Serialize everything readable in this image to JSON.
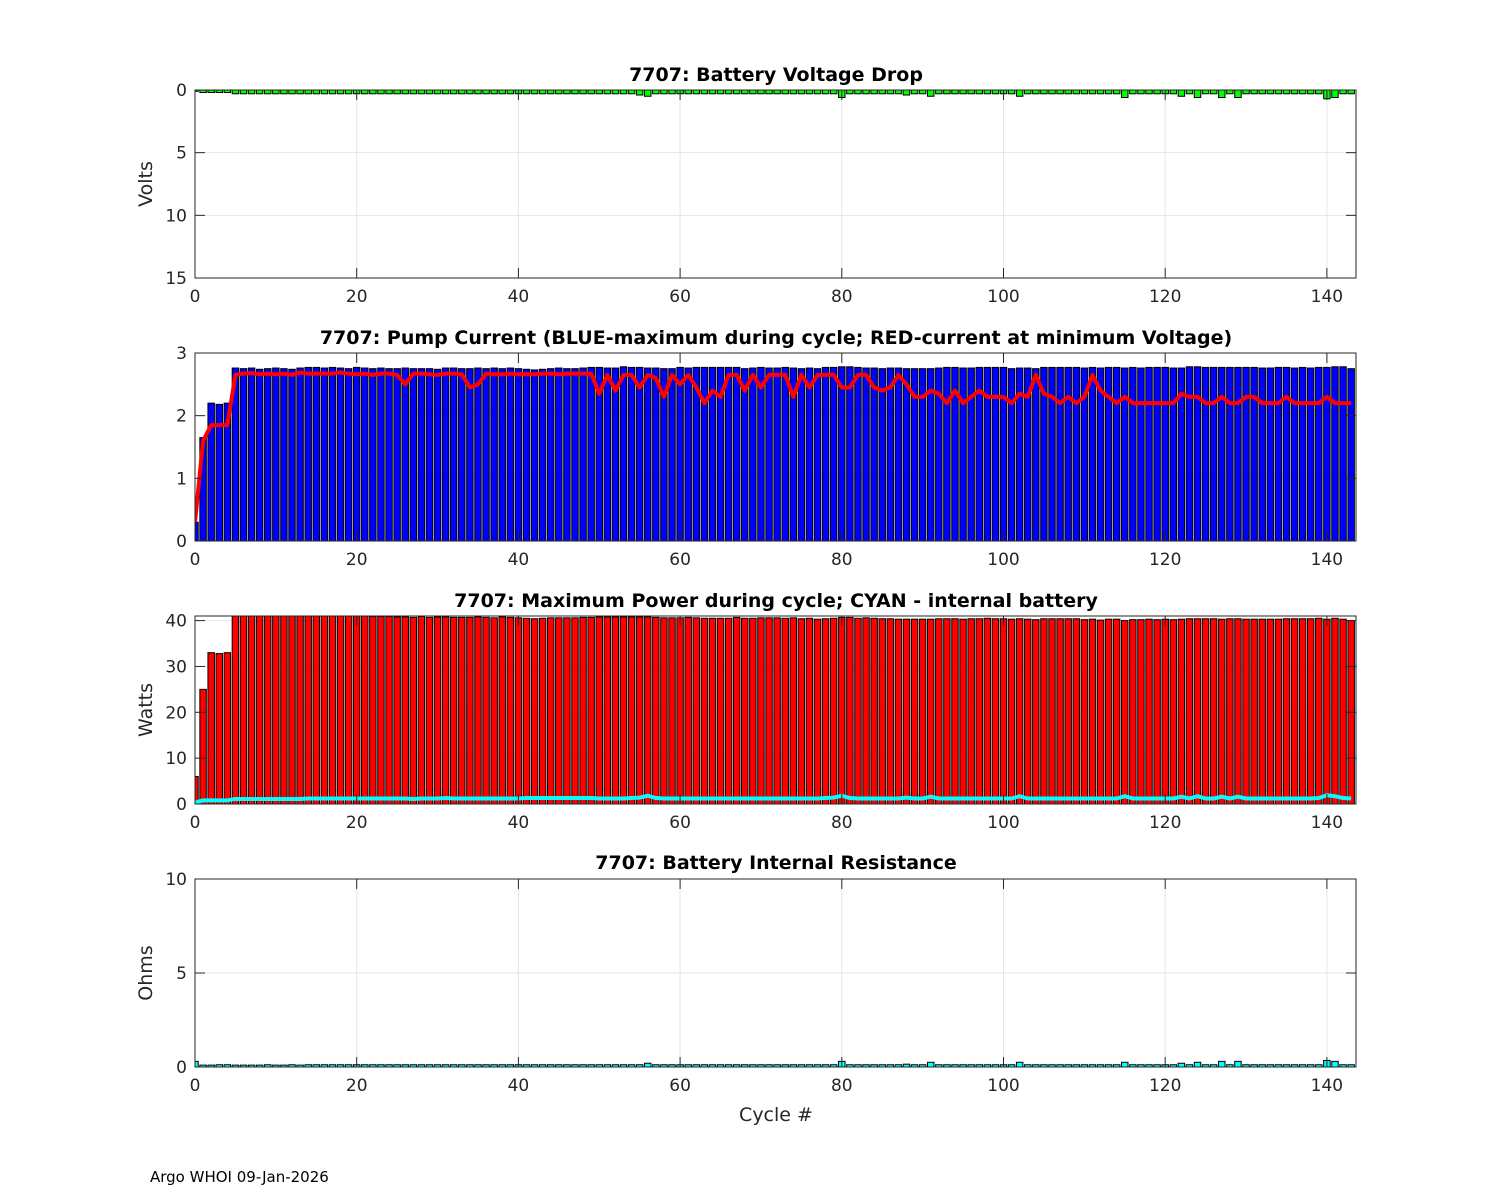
{
  "footer": "Argo WHOI 09-Jan-2026",
  "chart_data": [
    {
      "type": "bar",
      "title": "7707: Battery Voltage Drop",
      "ylabel": "Volts",
      "xlabel": "",
      "xlim": [
        0,
        143.6
      ],
      "ylim": [
        0,
        15
      ],
      "y_reversed": true,
      "xticks": [
        0,
        20,
        40,
        60,
        80,
        100,
        120,
        140
      ],
      "yticks": [
        0,
        5,
        10,
        15
      ],
      "grid": true,
      "bar_color": "#00ff00",
      "x_start": 0,
      "values": [
        0.1,
        0.2,
        0.2,
        0.2,
        0.2,
        0.3,
        0.3,
        0.3,
        0.3,
        0.3,
        0.3,
        0.3,
        0.3,
        0.3,
        0.3,
        0.3,
        0.3,
        0.3,
        0.3,
        0.3,
        0.3,
        0.3,
        0.3,
        0.3,
        0.3,
        0.3,
        0.3,
        0.3,
        0.3,
        0.3,
        0.3,
        0.3,
        0.3,
        0.3,
        0.3,
        0.3,
        0.3,
        0.3,
        0.3,
        0.3,
        0.3,
        0.3,
        0.3,
        0.3,
        0.3,
        0.3,
        0.3,
        0.3,
        0.3,
        0.3,
        0.3,
        0.3,
        0.3,
        0.3,
        0.3,
        0.4,
        0.5,
        0.3,
        0.3,
        0.3,
        0.3,
        0.3,
        0.3,
        0.3,
        0.3,
        0.3,
        0.3,
        0.3,
        0.3,
        0.3,
        0.3,
        0.3,
        0.3,
        0.3,
        0.3,
        0.3,
        0.3,
        0.3,
        0.3,
        0.3,
        0.6,
        0.3,
        0.3,
        0.3,
        0.3,
        0.3,
        0.3,
        0.3,
        0.4,
        0.3,
        0.3,
        0.5,
        0.3,
        0.3,
        0.3,
        0.3,
        0.3,
        0.3,
        0.3,
        0.3,
        0.3,
        0.3,
        0.5,
        0.3,
        0.3,
        0.3,
        0.3,
        0.3,
        0.3,
        0.3,
        0.3,
        0.3,
        0.3,
        0.3,
        0.3,
        0.6,
        0.3,
        0.3,
        0.3,
        0.3,
        0.3,
        0.3,
        0.5,
        0.3,
        0.6,
        0.3,
        0.3,
        0.6,
        0.3,
        0.6,
        0.3,
        0.3,
        0.3,
        0.3,
        0.3,
        0.3,
        0.3,
        0.3,
        0.3,
        0.3,
        0.7,
        0.6,
        0.3,
        0.3
      ]
    },
    {
      "type": "bar",
      "title": "7707: Pump Current (BLUE-maximum during cycle; RED-current at minimum Voltage)",
      "ylabel": "",
      "xlabel": "",
      "xlim": [
        0,
        143.6
      ],
      "ylim": [
        0,
        3
      ],
      "xticks": [
        0,
        20,
        40,
        60,
        80,
        100,
        120,
        140
      ],
      "yticks": [
        0,
        1,
        2,
        3
      ],
      "grid": true,
      "bar_color": "#0000ff",
      "line_color": "#ff0000",
      "x_start": 0,
      "series": [
        {
          "name": "maximum during cycle",
          "kind": "bar",
          "values": [
            0.3,
            1.65,
            2.2,
            2.18,
            2.2,
            2.76,
            2.75,
            2.76,
            2.74,
            2.75,
            2.76,
            2.75,
            2.74,
            2.76,
            2.77,
            2.77,
            2.76,
            2.77,
            2.76,
            2.75,
            2.77,
            2.76,
            2.75,
            2.76,
            2.75,
            2.75,
            2.76,
            2.75,
            2.75,
            2.75,
            2.74,
            2.76,
            2.76,
            2.75,
            2.75,
            2.76,
            2.75,
            2.76,
            2.75,
            2.76,
            2.75,
            2.74,
            2.73,
            2.74,
            2.75,
            2.76,
            2.75,
            2.75,
            2.76,
            2.77,
            2.77,
            2.76,
            2.76,
            2.78,
            2.77,
            2.77,
            2.76,
            2.76,
            2.75,
            2.75,
            2.77,
            2.76,
            2.77,
            2.77,
            2.77,
            2.77,
            2.77,
            2.77,
            2.75,
            2.76,
            2.77,
            2.76,
            2.76,
            2.77,
            2.76,
            2.75,
            2.76,
            2.75,
            2.77,
            2.77,
            2.78,
            2.78,
            2.77,
            2.76,
            2.76,
            2.75,
            2.76,
            2.76,
            2.75,
            2.75,
            2.75,
            2.75,
            2.76,
            2.77,
            2.77,
            2.76,
            2.76,
            2.77,
            2.77,
            2.77,
            2.77,
            2.75,
            2.76,
            2.76,
            2.75,
            2.77,
            2.77,
            2.77,
            2.77,
            2.77,
            2.76,
            2.77,
            2.76,
            2.77,
            2.77,
            2.76,
            2.77,
            2.76,
            2.77,
            2.77,
            2.77,
            2.76,
            2.76,
            2.78,
            2.78,
            2.77,
            2.77,
            2.77,
            2.77,
            2.77,
            2.77,
            2.77,
            2.76,
            2.76,
            2.77,
            2.77,
            2.76,
            2.77,
            2.76,
            2.77,
            2.77,
            2.78,
            2.78,
            2.75
          ]
        },
        {
          "name": "current at minimum Voltage",
          "kind": "line",
          "values": [
            0.3,
            1.6,
            1.85,
            1.85,
            1.85,
            2.65,
            2.67,
            2.68,
            2.66,
            2.67,
            2.66,
            2.67,
            2.65,
            2.69,
            2.67,
            2.67,
            2.67,
            2.67,
            2.69,
            2.67,
            2.66,
            2.67,
            2.65,
            2.67,
            2.67,
            2.65,
            2.5,
            2.67,
            2.67,
            2.66,
            2.65,
            2.67,
            2.67,
            2.66,
            2.45,
            2.5,
            2.67,
            2.66,
            2.66,
            2.67,
            2.66,
            2.66,
            2.66,
            2.67,
            2.67,
            2.66,
            2.67,
            2.67,
            2.67,
            2.67,
            2.35,
            2.65,
            2.4,
            2.65,
            2.65,
            2.45,
            2.65,
            2.6,
            2.3,
            2.65,
            2.5,
            2.65,
            2.45,
            2.2,
            2.4,
            2.3,
            2.65,
            2.65,
            2.4,
            2.65,
            2.45,
            2.65,
            2.65,
            2.65,
            2.3,
            2.65,
            2.45,
            2.65,
            2.65,
            2.65,
            2.45,
            2.45,
            2.65,
            2.65,
            2.45,
            2.4,
            2.45,
            2.65,
            2.5,
            2.3,
            2.3,
            2.4,
            2.35,
            2.2,
            2.4,
            2.2,
            2.3,
            2.4,
            2.3,
            2.3,
            2.3,
            2.2,
            2.35,
            2.3,
            2.65,
            2.35,
            2.3,
            2.2,
            2.3,
            2.2,
            2.3,
            2.65,
            2.4,
            2.3,
            2.2,
            2.3,
            2.2,
            2.2,
            2.2,
            2.2,
            2.2,
            2.2,
            2.35,
            2.3,
            2.3,
            2.2,
            2.2,
            2.3,
            2.2,
            2.2,
            2.3,
            2.3,
            2.2,
            2.2,
            2.2,
            2.3,
            2.2,
            2.2,
            2.2,
            2.2,
            2.3,
            2.2,
            2.2,
            2.2
          ]
        }
      ]
    },
    {
      "type": "bar",
      "title": "7707: Maximum Power during cycle; CYAN - internal battery",
      "ylabel": "Watts",
      "xlabel": "",
      "xlim": [
        0,
        143.6
      ],
      "ylim": [
        0,
        41
      ],
      "xticks": [
        0,
        20,
        40,
        60,
        80,
        100,
        120,
        140
      ],
      "yticks": [
        0,
        10,
        20,
        30,
        40
      ],
      "grid": true,
      "bar_color": "#ff0000",
      "line_color": "#00ffff",
      "x_start": 0,
      "series": [
        {
          "name": "maximum power",
          "kind": "bar",
          "values": [
            6,
            25,
            33,
            32.8,
            33,
            41,
            41,
            41,
            41,
            41,
            41,
            41,
            41,
            41,
            41,
            41,
            41,
            41,
            41,
            41,
            41,
            41,
            40.9,
            40.9,
            40.9,
            40.8,
            40.8,
            40.7,
            40.9,
            40.7,
            40.8,
            40.8,
            40.7,
            40.7,
            40.7,
            40.8,
            40.7,
            40.6,
            40.8,
            40.7,
            40.6,
            40.5,
            40.4,
            40.5,
            40.6,
            40.6,
            40.6,
            40.6,
            40.7,
            40.7,
            40.8,
            40.8,
            40.8,
            40.8,
            40.8,
            40.8,
            40.8,
            40.7,
            40.6,
            40.6,
            40.6,
            40.7,
            40.6,
            40.5,
            40.5,
            40.5,
            40.5,
            40.7,
            40.5,
            40.5,
            40.6,
            40.6,
            40.6,
            40.5,
            40.6,
            40.4,
            40.5,
            40.3,
            40.4,
            40.5,
            40.7,
            40.7,
            40.5,
            40.6,
            40.5,
            40.4,
            40.4,
            40.3,
            40.3,
            40.3,
            40.3,
            40.3,
            40.4,
            40.4,
            40.4,
            40.3,
            40.4,
            40.4,
            40.5,
            40.4,
            40.4,
            40.3,
            40.4,
            40.3,
            40.2,
            40.4,
            40.4,
            40.4,
            40.4,
            40.4,
            40.2,
            40.3,
            40.1,
            40.3,
            40.3,
            40.0,
            40.2,
            40.2,
            40.3,
            40.2,
            40.3,
            40.2,
            40.3,
            40.4,
            40.4,
            40.4,
            40.4,
            40.3,
            40.4,
            40.4,
            40.3,
            40.3,
            40.3,
            40.3,
            40.3,
            40.4,
            40.4,
            40.4,
            40.4,
            40.5,
            40.3,
            40.5,
            40.3,
            40.0
          ]
        },
        {
          "name": "internal battery",
          "kind": "line",
          "values": [
            0.3,
            0.8,
            0.8,
            0.8,
            0.8,
            1.1,
            1.1,
            1.1,
            1.1,
            1.1,
            1.1,
            1.1,
            1.1,
            1.1,
            1.2,
            1.2,
            1.2,
            1.2,
            1.2,
            1.2,
            1.2,
            1.2,
            1.2,
            1.2,
            1.2,
            1.2,
            1.2,
            1.1,
            1.2,
            1.2,
            1.2,
            1.3,
            1.2,
            1.2,
            1.2,
            1.2,
            1.2,
            1.2,
            1.2,
            1.2,
            1.2,
            1.3,
            1.3,
            1.3,
            1.3,
            1.3,
            1.3,
            1.3,
            1.3,
            1.3,
            1.2,
            1.2,
            1.2,
            1.2,
            1.3,
            1.4,
            1.8,
            1.3,
            1.2,
            1.2,
            1.2,
            1.2,
            1.2,
            1.2,
            1.2,
            1.2,
            1.2,
            1.2,
            1.2,
            1.2,
            1.2,
            1.2,
            1.2,
            1.2,
            1.2,
            1.2,
            1.2,
            1.2,
            1.3,
            1.4,
            1.8,
            1.3,
            1.2,
            1.2,
            1.2,
            1.2,
            1.2,
            1.2,
            1.4,
            1.2,
            1.2,
            1.6,
            1.2,
            1.2,
            1.2,
            1.2,
            1.2,
            1.2,
            1.2,
            1.2,
            1.2,
            1.2,
            1.7,
            1.2,
            1.2,
            1.2,
            1.2,
            1.2,
            1.2,
            1.2,
            1.2,
            1.2,
            1.2,
            1.2,
            1.2,
            1.7,
            1.2,
            1.2,
            1.2,
            1.2,
            1.2,
            1.2,
            1.6,
            1.2,
            1.7,
            1.2,
            1.2,
            1.6,
            1.2,
            1.6,
            1.2,
            1.2,
            1.2,
            1.2,
            1.2,
            1.2,
            1.2,
            1.2,
            1.2,
            1.3,
            1.9,
            1.7,
            1.3,
            1.2
          ]
        }
      ]
    },
    {
      "type": "bar",
      "title": "7707: Battery Internal Resistance",
      "ylabel": "Ohms",
      "xlabel": "Cycle #",
      "xlim": [
        0,
        143.6
      ],
      "ylim": [
        0,
        10
      ],
      "xticks": [
        0,
        20,
        40,
        60,
        80,
        100,
        120,
        140
      ],
      "yticks": [
        0,
        5,
        10
      ],
      "grid": true,
      "bar_color": "#00ffff",
      "x_start": 0,
      "values": [
        0.3,
        0.1,
        0.1,
        0.12,
        0.12,
        0.1,
        0.1,
        0.1,
        0.1,
        0.12,
        0.1,
        0.1,
        0.12,
        0.1,
        0.12,
        0.12,
        0.12,
        0.12,
        0.12,
        0.12,
        0.12,
        0.12,
        0.12,
        0.12,
        0.12,
        0.12,
        0.12,
        0.12,
        0.12,
        0.12,
        0.12,
        0.12,
        0.12,
        0.12,
        0.12,
        0.12,
        0.12,
        0.12,
        0.12,
        0.12,
        0.12,
        0.12,
        0.12,
        0.12,
        0.12,
        0.12,
        0.12,
        0.12,
        0.12,
        0.12,
        0.12,
        0.12,
        0.12,
        0.12,
        0.12,
        0.12,
        0.2,
        0.12,
        0.12,
        0.12,
        0.12,
        0.12,
        0.12,
        0.12,
        0.12,
        0.12,
        0.12,
        0.12,
        0.12,
        0.12,
        0.12,
        0.12,
        0.12,
        0.12,
        0.12,
        0.12,
        0.12,
        0.12,
        0.12,
        0.12,
        0.3,
        0.12,
        0.12,
        0.12,
        0.12,
        0.12,
        0.12,
        0.12,
        0.15,
        0.12,
        0.12,
        0.25,
        0.12,
        0.12,
        0.12,
        0.12,
        0.12,
        0.12,
        0.12,
        0.12,
        0.12,
        0.12,
        0.25,
        0.12,
        0.12,
        0.12,
        0.12,
        0.12,
        0.12,
        0.12,
        0.12,
        0.12,
        0.12,
        0.12,
        0.12,
        0.25,
        0.12,
        0.12,
        0.12,
        0.12,
        0.12,
        0.12,
        0.2,
        0.12,
        0.25,
        0.12,
        0.12,
        0.3,
        0.12,
        0.3,
        0.12,
        0.12,
        0.12,
        0.12,
        0.12,
        0.12,
        0.12,
        0.12,
        0.12,
        0.12,
        0.35,
        0.3,
        0.12,
        0.12
      ]
    }
  ]
}
